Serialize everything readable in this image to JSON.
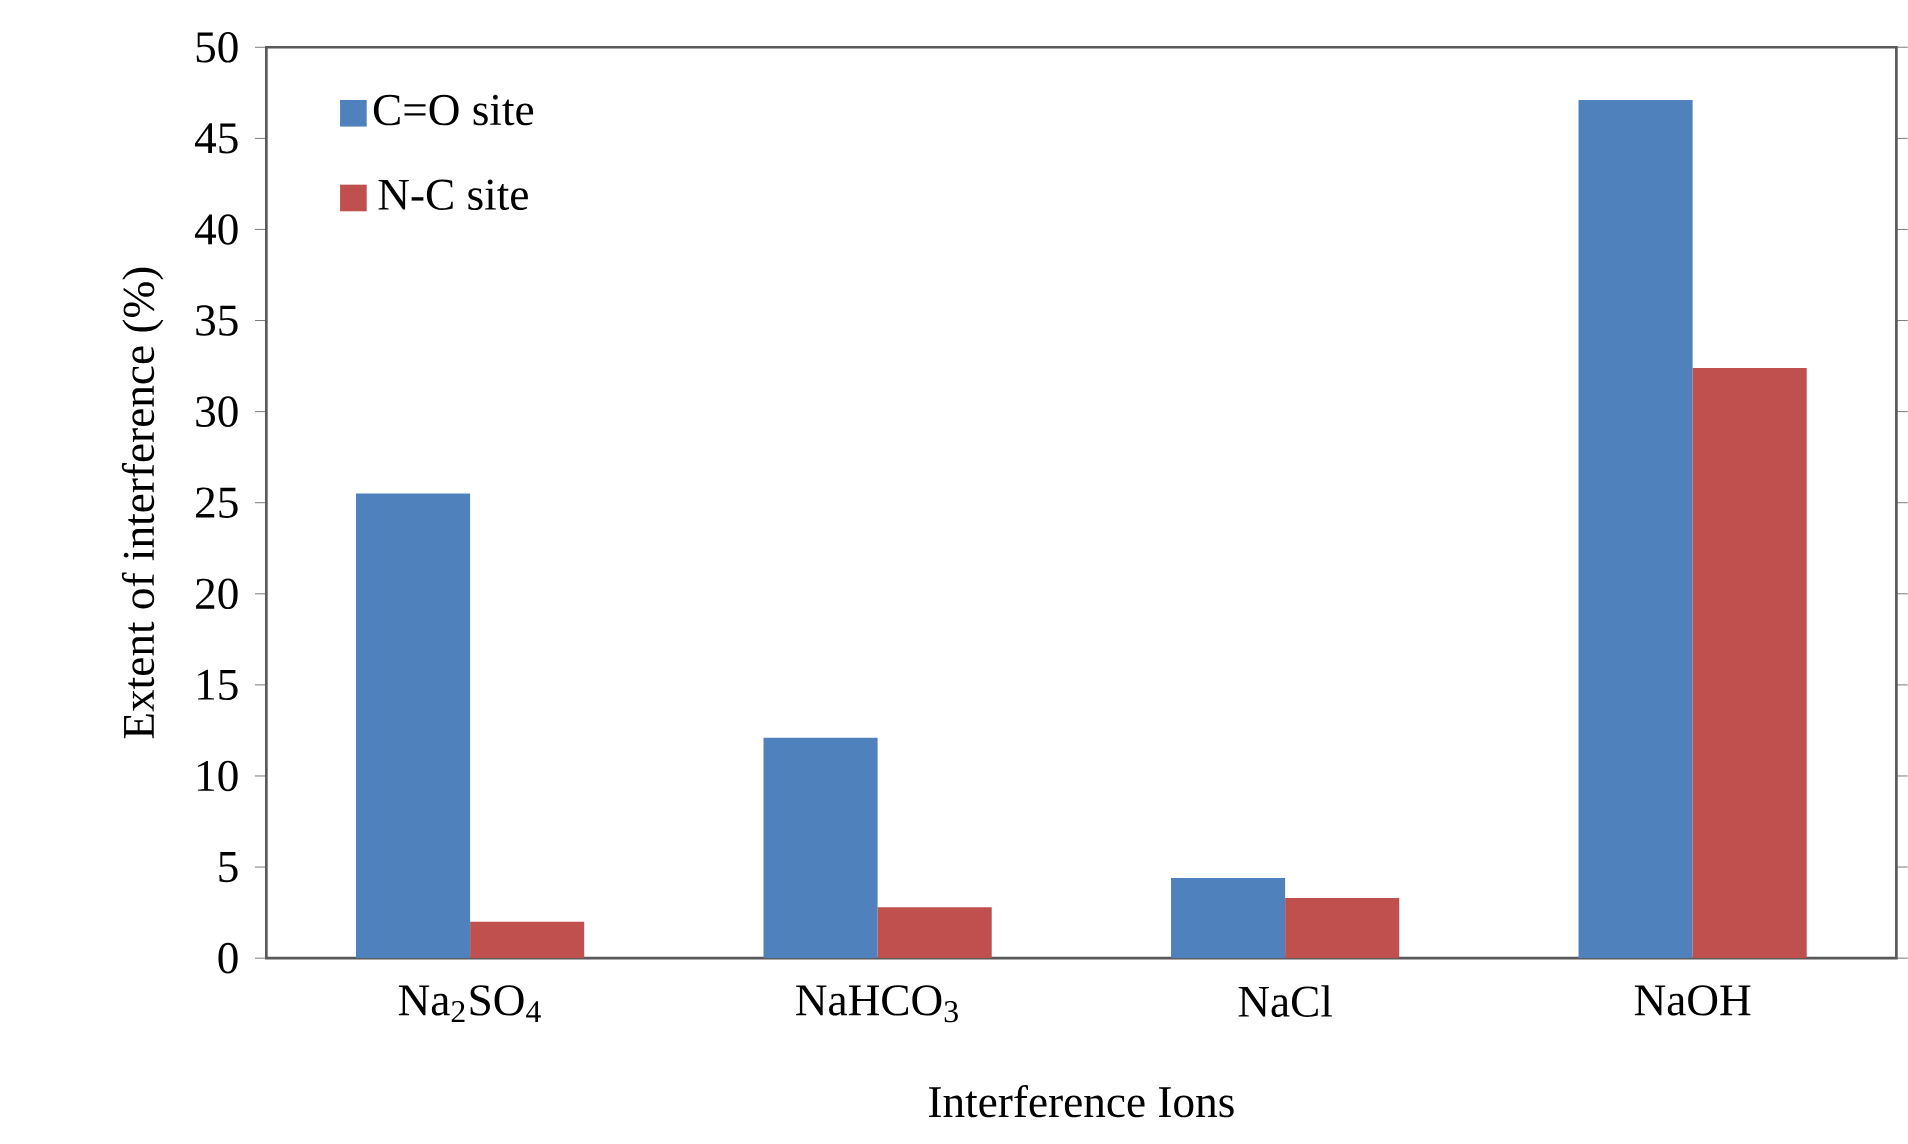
{
  "chart_data": {
    "type": "bar",
    "xlabel": "Interference Ions",
    "ylabel": "Extent of interference (%)",
    "categories": [
      "Na$_{2}$SO$_{4}$",
      "NaHCO$_{3}$",
      "NaCl",
      "NaOH"
    ],
    "series": [
      {
        "name": "C=O site",
        "color": "#4f81bd",
        "values": [
          25.5,
          12.1,
          4.4,
          47.1
        ]
      },
      {
        "name": "N-C site",
        "color": "#c0504d",
        "values": [
          2.0,
          2.8,
          3.3,
          32.4
        ]
      }
    ],
    "ylim": [
      0,
      50
    ],
    "yticks": [
      0,
      5,
      10,
      15,
      20,
      25,
      30,
      35,
      40,
      45,
      50
    ],
    "grid": false,
    "legend": "top left"
  }
}
